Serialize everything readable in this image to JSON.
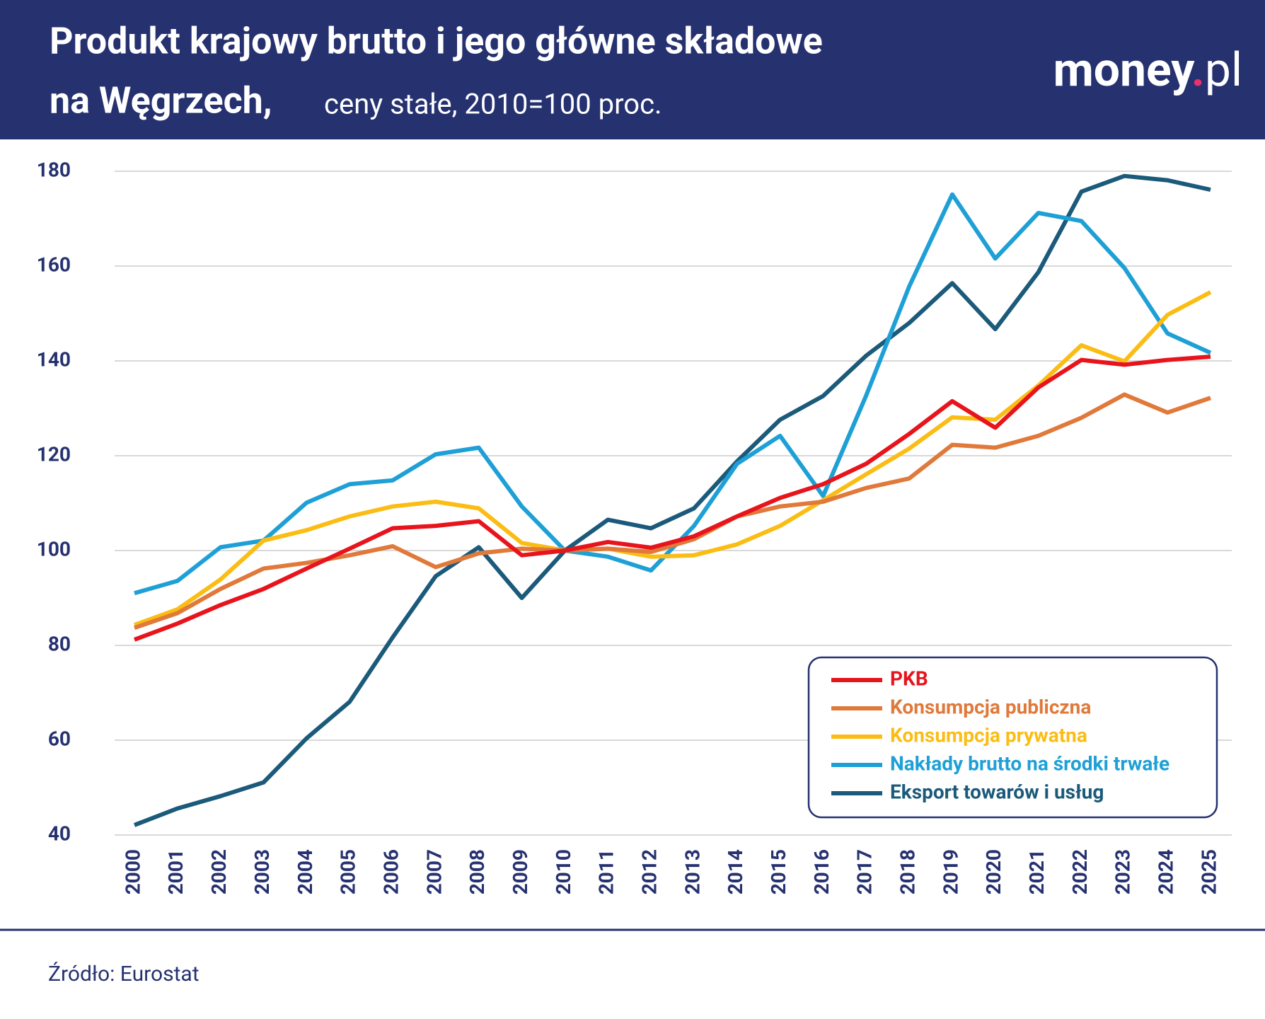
{
  "title": "Produkt krajowy brutto i jego główne składowe",
  "title_line2": "na Węgrzech,",
  "subtitle": "ceny stałe, 2010=100 proc.",
  "logo": {
    "name": "money",
    "dot": ".",
    "tld": "pl"
  },
  "source": "Źródło: Eurostat",
  "chart_data": {
    "type": "line",
    "x": [
      2000,
      2001,
      2002,
      2003,
      2004,
      2005,
      2006,
      2007,
      2008,
      2009,
      2010,
      2011,
      2012,
      2013,
      2014,
      2015,
      2016,
      2017,
      2018,
      2019,
      2020,
      2021,
      2022,
      2023,
      2024,
      2025
    ],
    "xlim": [
      2000,
      2025
    ],
    "ylim": [
      40,
      180
    ],
    "yticks": [
      40,
      60,
      80,
      100,
      120,
      140,
      160,
      180
    ],
    "grid": true,
    "legend": "lower right",
    "series": [
      {
        "name": "PKB",
        "color": "#e8141c",
        "values": [
          81.2,
          84.6,
          88.5,
          91.9,
          96.2,
          100.4,
          104.7,
          105.2,
          106.2,
          99,
          100,
          101.8,
          100.6,
          103,
          107.2,
          111.1,
          114,
          118.3,
          124.6,
          131.5,
          125.9,
          134.4,
          140.2,
          139.2,
          140.2,
          140.9
        ]
      },
      {
        "name": "Konsumpcja publiczna",
        "color": "#e0793a",
        "values": [
          83.7,
          86.8,
          91.9,
          96.2,
          97.4,
          99,
          100.9,
          96.5,
          99.4,
          100.4,
          100,
          100.4,
          99.7,
          102.4,
          107.2,
          109.3,
          110.3,
          113.2,
          115.2,
          122.3,
          121.7,
          124.2,
          128,
          132.9,
          129.1,
          132.2
        ]
      },
      {
        "name": "Konsumpcja prywatna",
        "color": "#fbbd14",
        "values": [
          84.3,
          87.6,
          93.9,
          102.1,
          104.3,
          107.2,
          109.3,
          110.3,
          108.9,
          101.6,
          100,
          100.4,
          98.7,
          99,
          101.3,
          105.2,
          110.6,
          116.1,
          121.5,
          128.1,
          127.6,
          134.8,
          143.3,
          139.9,
          149.7,
          154.5
        ]
      },
      {
        "name": "Nakłady brutto na środki trwałe",
        "color": "#1ea0d6",
        "values": [
          91,
          93.6,
          100.7,
          102.1,
          110.1,
          114,
          114.8,
          120.3,
          121.7,
          109.3,
          100,
          98.7,
          95.8,
          105.2,
          118.3,
          124.2,
          111.5,
          132.7,
          155.7,
          175.1,
          161.6,
          171.2,
          169.5,
          159.6,
          145.8,
          141.7
        ]
      },
      {
        "name": "Eksport towarów i usług",
        "color": "#1b5a7a",
        "values": [
          42.1,
          45.6,
          48.2,
          51.1,
          60.4,
          68.1,
          81.7,
          94.6,
          100.7,
          90,
          100,
          106.5,
          104.7,
          108.9,
          118.8,
          127.6,
          132.6,
          141.1,
          148,
          156.4,
          146.7,
          158.7,
          175.7,
          179,
          178.1,
          176.1
        ]
      }
    ]
  }
}
